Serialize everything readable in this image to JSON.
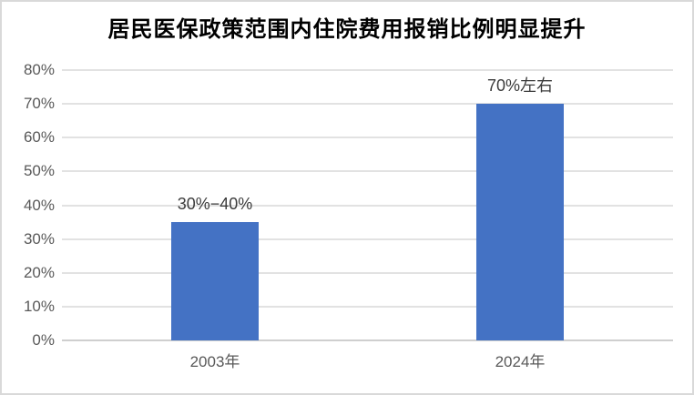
{
  "chart_data": {
    "type": "bar",
    "title": "居民医保政策范围内住院费用报销比例明显提升",
    "categories": [
      "2003年",
      "2024年"
    ],
    "values": [
      35,
      70
    ],
    "bar_labels": [
      "30%−40%",
      "70%左右"
    ],
    "ylim": [
      0,
      80
    ],
    "ytick_values": [
      0,
      10,
      20,
      30,
      40,
      50,
      60,
      70,
      80
    ],
    "ytick_labels": [
      "0%",
      "10%",
      "20%",
      "30%",
      "40%",
      "50%",
      "60%",
      "70%",
      "80%"
    ],
    "xlabel": "",
    "ylabel": "",
    "grid": true,
    "legend": false,
    "colors": {
      "bar": "#4472C4",
      "gridline": "#E2E2E2",
      "axis_line": "#CFCFCF",
      "tick_label": "#595959",
      "data_label": "#3B3B3B",
      "title": "#000000",
      "frame": "#D9D9D9",
      "background": "#FFFFFF"
    }
  }
}
